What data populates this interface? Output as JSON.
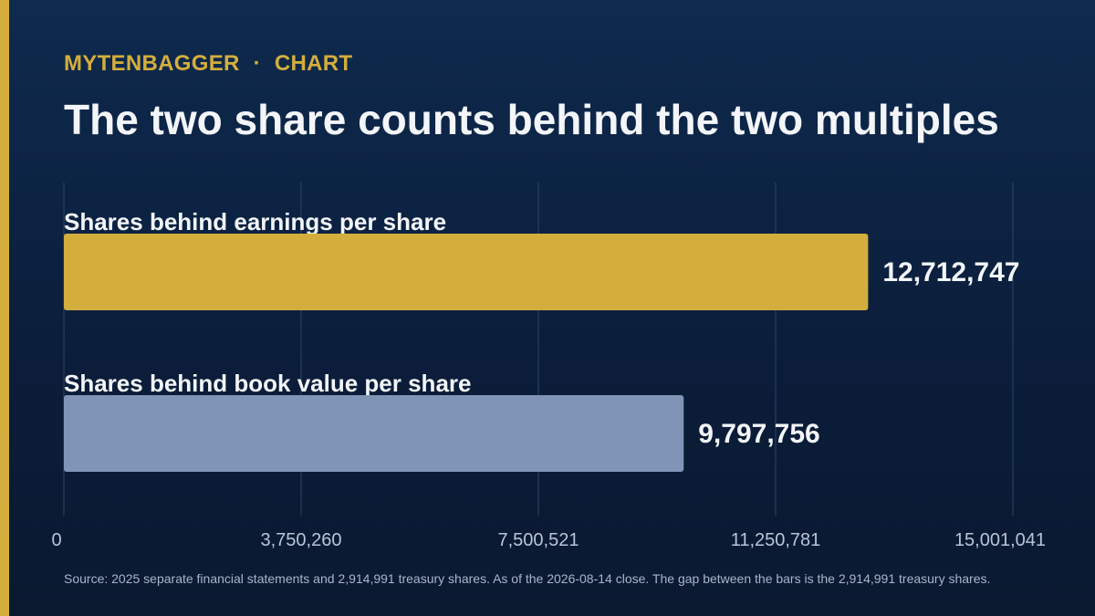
{
  "header": {
    "brand": "MYTENBAGGER",
    "separator": "·",
    "section": "CHART",
    "title": "The two share counts behind the two multiples"
  },
  "chart_data": {
    "type": "bar",
    "orientation": "horizontal",
    "categories": [
      "Shares behind earnings per share",
      "Shares behind book value per share"
    ],
    "values": [
      12712747,
      9797756
    ],
    "value_labels": [
      "12,712,747",
      "9,797,756"
    ],
    "bar_colors": [
      "#d4ae3c",
      "#7f94b6"
    ],
    "xlim": [
      0,
      15001041
    ],
    "x_ticks": [
      0,
      3750260,
      7500521,
      11250781,
      15001041
    ],
    "x_tick_labels": [
      "0",
      "3,750,260",
      "7,500,521",
      "11,250,781",
      "15,001,041"
    ],
    "grid": true,
    "title": "The two share counts behind the two multiples",
    "xlabel": "",
    "ylabel": ""
  },
  "footer": {
    "source": "Source: 2025 separate financial statements and 2,914,991 treasury shares. As of the 2026-08-14 close. The gap between the bars is the 2,914,991 treasury shares."
  },
  "colors": {
    "accent": "#d4ae3c",
    "secondary_bar": "#7f94b6",
    "background": "#0c2344",
    "gridline": "#2e4566"
  }
}
